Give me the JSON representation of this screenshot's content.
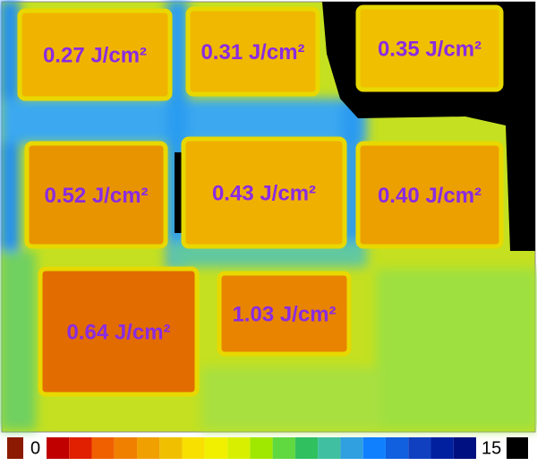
{
  "image": {
    "regions": [
      {
        "label": "0.27 J/cm²",
        "color": "#f0b400"
      },
      {
        "label": "0.31 J/cm²",
        "color": "#f0b800"
      },
      {
        "label": "0.35 J/cm²",
        "color": "#f0c000"
      },
      {
        "label": "0.52 J/cm²",
        "color": "#e89400"
      },
      {
        "label": "0.43 J/cm²",
        "color": "#f0b000"
      },
      {
        "label": "0.40 J/cm²",
        "color": "#eca000"
      },
      {
        "label": "0.64 J/cm²",
        "color": "#e26c00"
      },
      {
        "label": "1.03 J/cm²",
        "color": "#e88400"
      }
    ]
  },
  "colorbar": {
    "min_label": "0",
    "max_label": "15",
    "colors": [
      "#c00000",
      "#e02000",
      "#f06000",
      "#f08000",
      "#f0a000",
      "#f0c000",
      "#f8e000",
      "#f0f000",
      "#d8f000",
      "#a0e800",
      "#60d840",
      "#30c060",
      "#40c0a0",
      "#30a0e0",
      "#1080ff",
      "#1060e0",
      "#1040c0",
      "#0020a0",
      "#001080"
    ]
  }
}
